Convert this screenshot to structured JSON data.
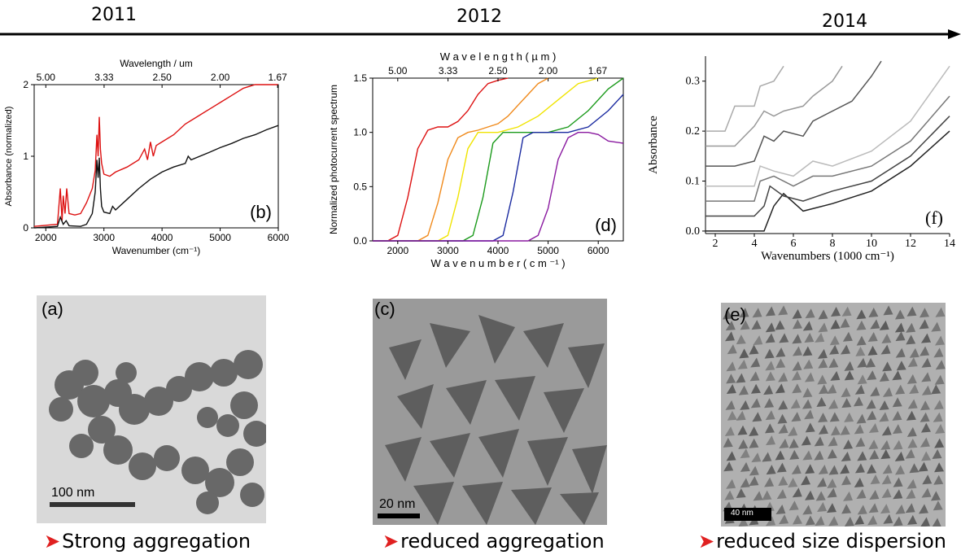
{
  "timeline": {
    "years": [
      "2011",
      "2012",
      "2014"
    ]
  },
  "captions": {
    "a": "Strong aggregation",
    "c": "reduced aggregation",
    "e": "reduced size dispersion"
  },
  "tem": {
    "a": {
      "label": "(a)",
      "scale": "100 nm"
    },
    "c": {
      "label": "(c)",
      "scale": "20 nm"
    },
    "e": {
      "label": "(e)",
      "scale": "40 nm"
    }
  },
  "colors": {
    "bullet": "#e02020"
  },
  "chart_data": [
    {
      "type": "line",
      "panel": "(b)",
      "xlabel": "Wavenumber (cm⁻¹)",
      "ylabel": "Absorbance (normalized)",
      "top_label": "Wavelength / um",
      "xlim": [
        1800,
        6000
      ],
      "ylim": [
        0,
        2
      ],
      "x_ticks": [
        "2000",
        "3000",
        "4000",
        "5000",
        "6000"
      ],
      "y_ticks": [
        "0",
        "1",
        "2"
      ],
      "top_ticks": [
        "5.00",
        "3.33",
        "2.50",
        "2.00",
        "1.67"
      ],
      "series": [
        {
          "color": "#dd1111",
          "x": [
            1800,
            2200,
            2250,
            2280,
            2300,
            2330,
            2360,
            2400,
            2500,
            2600,
            2700,
            2800,
            2850,
            2880,
            2900,
            2920,
            2940,
            2960,
            3000,
            3100,
            3200,
            3400,
            3600,
            3700,
            3750,
            3800,
            3850,
            3900,
            4000,
            4200,
            4400,
            4600,
            4800,
            5000,
            5200,
            5400,
            5600,
            5800,
            6000
          ],
          "y": [
            0.02,
            0.05,
            0.55,
            0.1,
            0.45,
            0.2,
            0.55,
            0.2,
            0.18,
            0.2,
            0.35,
            0.55,
            0.8,
            1.3,
            1.0,
            1.55,
            1.1,
            0.9,
            0.75,
            0.72,
            0.78,
            0.85,
            0.95,
            1.1,
            0.95,
            1.2,
            1.0,
            1.15,
            1.2,
            1.3,
            1.45,
            1.55,
            1.65,
            1.75,
            1.85,
            1.95,
            2.0,
            2.0,
            2.0
          ]
        },
        {
          "color": "#111111",
          "x": [
            1800,
            2200,
            2250,
            2300,
            2350,
            2400,
            2600,
            2700,
            2800,
            2850,
            2880,
            2900,
            2920,
            2940,
            2960,
            3000,
            3100,
            3150,
            3200,
            3400,
            3600,
            3800,
            4000,
            4200,
            4400,
            4450,
            4500,
            4800,
            5000,
            5200,
            5400,
            5600,
            5800,
            6000
          ],
          "y": [
            0.0,
            0.02,
            0.15,
            0.05,
            0.1,
            0.03,
            0.02,
            0.05,
            0.2,
            0.5,
            0.95,
            0.7,
            0.98,
            0.55,
            0.3,
            0.22,
            0.2,
            0.3,
            0.25,
            0.4,
            0.55,
            0.68,
            0.78,
            0.85,
            0.9,
            1.0,
            0.95,
            1.05,
            1.12,
            1.18,
            1.25,
            1.3,
            1.37,
            1.43
          ]
        }
      ]
    },
    {
      "type": "line",
      "panel": "(d)",
      "xlabel": "W a v e n u m b e r  ( c m ⁻¹ )",
      "ylabel": "Normalized photocurrent spectrum",
      "top_label": "W a v e l e n g t h  ( µ m )",
      "xlim": [
        1500,
        6500
      ],
      "ylim": [
        0,
        1.5
      ],
      "x_ticks": [
        "2000",
        "3000",
        "4000",
        "5000",
        "6000"
      ],
      "y_ticks": [
        "0.0",
        "0.5",
        "1.0",
        "1.5"
      ],
      "top_ticks": [
        "5.00",
        "3.33",
        "2.50",
        "2.00",
        "1.67"
      ],
      "series": [
        {
          "color": "#dd1111",
          "x": [
            1500,
            1800,
            2000,
            2200,
            2400,
            2600,
            2800,
            3000,
            3200,
            3400,
            3600,
            3800,
            4000,
            4200
          ],
          "y": [
            0,
            0,
            0.05,
            0.4,
            0.85,
            1.02,
            1.05,
            1.05,
            1.1,
            1.2,
            1.35,
            1.45,
            1.48,
            1.5
          ]
        },
        {
          "color": "#f08a1c",
          "x": [
            1500,
            2400,
            2600,
            2800,
            3000,
            3200,
            3400,
            3600,
            3800,
            4000,
            4200,
            4400,
            4600,
            4800,
            5000
          ],
          "y": [
            0,
            0,
            0.05,
            0.35,
            0.75,
            0.95,
            1.0,
            1.02,
            1.05,
            1.08,
            1.15,
            1.25,
            1.35,
            1.45,
            1.5
          ]
        },
        {
          "color": "#f0e400",
          "x": [
            1500,
            2800,
            3000,
            3200,
            3400,
            3600,
            3800,
            4000,
            4400,
            4800,
            5200,
            5600,
            6000
          ],
          "y": [
            0,
            0,
            0.05,
            0.4,
            0.85,
            1.0,
            1.0,
            1.0,
            1.05,
            1.15,
            1.3,
            1.45,
            1.5
          ]
        },
        {
          "color": "#1b9a1b",
          "x": [
            1500,
            3300,
            3500,
            3700,
            3900,
            4100,
            4300,
            4600,
            5000,
            5400,
            5800,
            6200,
            6500
          ],
          "y": [
            0,
            0,
            0.05,
            0.4,
            0.9,
            1.0,
            1.0,
            1.0,
            1.0,
            1.05,
            1.2,
            1.4,
            1.5
          ]
        },
        {
          "color": "#1a2aa0",
          "x": [
            1500,
            3900,
            4100,
            4300,
            4500,
            4700,
            5000,
            5400,
            5800,
            6200,
            6500
          ],
          "y": [
            0,
            0,
            0.05,
            0.45,
            0.95,
            1.0,
            1.0,
            1.0,
            1.05,
            1.2,
            1.35
          ]
        },
        {
          "color": "#8a1aa0",
          "x": [
            1500,
            4600,
            4800,
            5000,
            5200,
            5400,
            5600,
            5800,
            6000,
            6200,
            6500
          ],
          "y": [
            0,
            0,
            0.05,
            0.3,
            0.75,
            0.95,
            1.0,
            1.0,
            0.98,
            0.92,
            0.9
          ]
        }
      ]
    },
    {
      "type": "line",
      "panel": "(f)",
      "xlabel": "Wavenumbers (1000 cm⁻¹)",
      "ylabel": "Absorbance",
      "xlim": [
        1.5,
        14
      ],
      "ylim": [
        -0.005,
        0.35
      ],
      "x_ticks": [
        "2",
        "4",
        "6",
        "8",
        "10",
        "12",
        "14"
      ],
      "y_ticks": [
        "0.0",
        "0.1",
        "0.2",
        "0.3"
      ],
      "series": [
        {
          "color": "#222222",
          "x": [
            1.5,
            2.5,
            3.0,
            4.0,
            4.5,
            5.0,
            5.5,
            6.5,
            8,
            10,
            12,
            14
          ],
          "y": [
            0.0,
            0.0,
            0.0,
            0.0,
            0.0,
            0.05,
            0.075,
            0.04,
            0.055,
            0.08,
            0.13,
            0.2
          ]
        },
        {
          "color": "#444444",
          "x": [
            1.5,
            2.5,
            3.0,
            4.0,
            4.5,
            4.8,
            5.5,
            6.5,
            8,
            10,
            12,
            14
          ],
          "y": [
            0.03,
            0.03,
            0.03,
            0.03,
            0.05,
            0.09,
            0.07,
            0.06,
            0.08,
            0.1,
            0.15,
            0.23
          ]
        },
        {
          "color": "#777777",
          "x": [
            1.5,
            2.5,
            3.0,
            4.0,
            4.3,
            5.0,
            6.0,
            7,
            8,
            10,
            12,
            14
          ],
          "y": [
            0.06,
            0.06,
            0.06,
            0.06,
            0.1,
            0.11,
            0.09,
            0.11,
            0.11,
            0.13,
            0.18,
            0.27
          ]
        },
        {
          "color": "#bbbbbb",
          "x": [
            1.5,
            2.5,
            3.0,
            4.0,
            4.3,
            5.0,
            6.0,
            7,
            8,
            10,
            12,
            14
          ],
          "y": [
            0.09,
            0.09,
            0.09,
            0.09,
            0.13,
            0.12,
            0.11,
            0.14,
            0.13,
            0.16,
            0.22,
            0.33
          ]
        },
        {
          "color": "#555555",
          "x": [
            1.5,
            2.5,
            3.0,
            4.0,
            4.5,
            5.0,
            5.5,
            6.5,
            7,
            8,
            9,
            10,
            10.5
          ],
          "y": [
            0.13,
            0.13,
            0.13,
            0.14,
            0.19,
            0.18,
            0.2,
            0.19,
            0.22,
            0.24,
            0.26,
            0.31,
            0.34
          ]
        },
        {
          "color": "#999999",
          "x": [
            1.5,
            2.5,
            3.0,
            4.0,
            4.5,
            5.0,
            5.5,
            6.5,
            7,
            8,
            8.5
          ],
          "y": [
            0.17,
            0.17,
            0.17,
            0.21,
            0.24,
            0.23,
            0.24,
            0.25,
            0.27,
            0.3,
            0.33
          ]
        },
        {
          "color": "#aaaaaa",
          "x": [
            1.5,
            2.5,
            3.0,
            4.0,
            4.3,
            5.0,
            5.5
          ],
          "y": [
            0.2,
            0.2,
            0.25,
            0.25,
            0.29,
            0.3,
            0.33
          ]
        }
      ]
    }
  ]
}
